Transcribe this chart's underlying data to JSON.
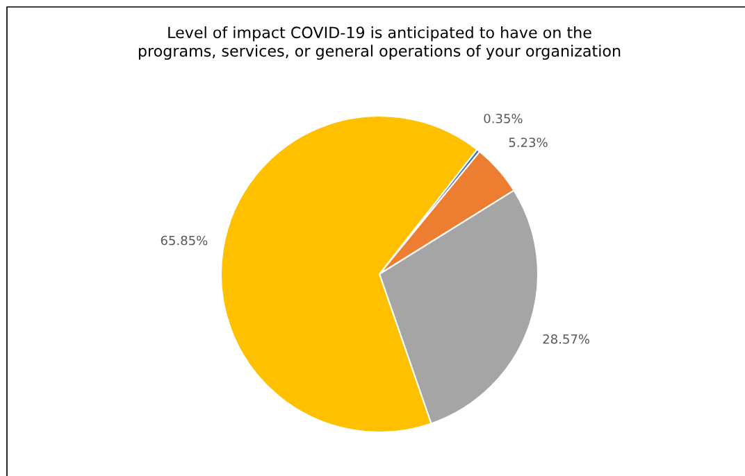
{
  "chart_data": {
    "type": "pie",
    "title": "Level of impact COVID-19 is anticipated to have on the\nprograms, services, or general operations of your organization",
    "categories": [
      null,
      null,
      null,
      null
    ],
    "values": [
      0.35,
      5.23,
      28.57,
      65.85
    ],
    "colors": [
      "#4472c4",
      "#ed7d31",
      "#a5a5a5",
      "#ffc000"
    ],
    "value_labels": [
      "0.35%",
      "5.23%",
      "28.57%",
      "65.85%"
    ]
  }
}
